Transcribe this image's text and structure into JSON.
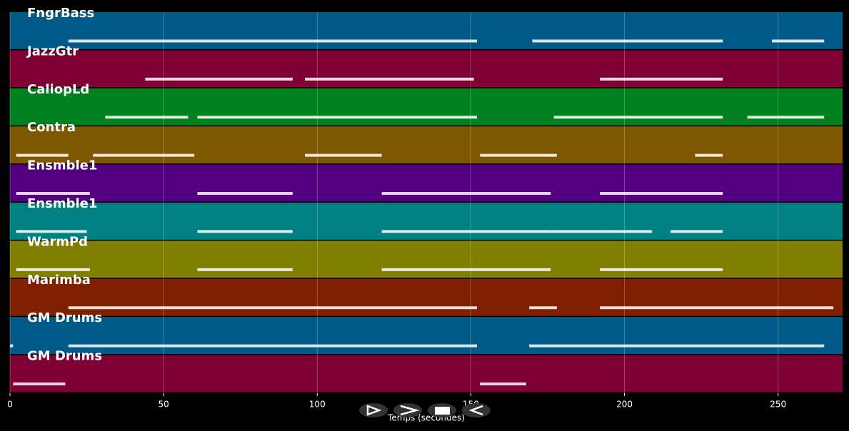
{
  "chart_data": {
    "type": "piano-roll",
    "x_label": "Temps (secondes)",
    "xlim": [
      0,
      271
    ],
    "xticks": [
      0,
      50,
      100,
      150,
      200,
      250
    ],
    "grid": true,
    "tracks": [
      {
        "name": "FngrBass",
        "color": "#005a87",
        "segments": [
          [
            19,
            60
          ],
          [
            60,
            152
          ],
          [
            170,
            232
          ],
          [
            248,
            265
          ]
        ]
      },
      {
        "name": "JazzGtr",
        "color": "#7f0032",
        "segments": [
          [
            44,
            92
          ],
          [
            96,
            151
          ],
          [
            192,
            232
          ]
        ]
      },
      {
        "name": "CaliopLd",
        "color": "#00801f",
        "segments": [
          [
            31,
            58
          ],
          [
            61,
            152
          ],
          [
            177,
            232
          ],
          [
            240,
            265
          ]
        ]
      },
      {
        "name": "Contra",
        "color": "#7f5700",
        "segments": [
          [
            2,
            19
          ],
          [
            27,
            60
          ],
          [
            96,
            121
          ],
          [
            153,
            170
          ],
          [
            170,
            178
          ],
          [
            223,
            232
          ]
        ]
      },
      {
        "name": "Ensmble1",
        "color": "#52007f",
        "segments": [
          [
            2,
            26
          ],
          [
            61,
            92
          ],
          [
            121,
            176
          ],
          [
            192,
            232
          ]
        ]
      },
      {
        "name": "Ensmble1",
        "color": "#008080",
        "segments": [
          [
            2,
            25
          ],
          [
            61,
            92
          ],
          [
            121,
            176
          ],
          [
            176,
            192
          ],
          [
            192,
            209
          ],
          [
            215,
            232
          ]
        ]
      },
      {
        "name": "WarmPd",
        "color": "#807f00",
        "segments": [
          [
            2,
            26
          ],
          [
            61,
            92
          ],
          [
            121,
            176
          ],
          [
            192,
            232
          ]
        ]
      },
      {
        "name": "Marimba",
        "color": "#7f2000",
        "segments": [
          [
            19,
            152
          ],
          [
            169,
            178
          ],
          [
            192,
            268
          ]
        ]
      },
      {
        "name": "GM Drums",
        "color": "#005a87",
        "segments": [
          [
            0,
            1
          ],
          [
            19,
            152
          ],
          [
            169,
            265
          ]
        ]
      },
      {
        "name": "GM Drums",
        "color": "#7f0032",
        "segments": [
          [
            1,
            18
          ],
          [
            153,
            168
          ]
        ]
      }
    ]
  }
}
